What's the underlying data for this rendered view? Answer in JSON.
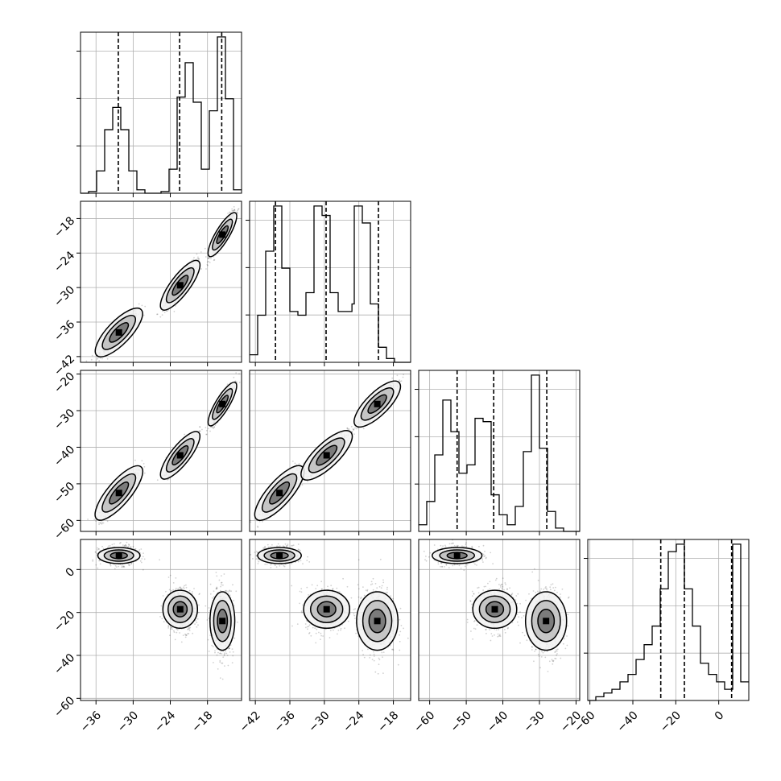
{
  "chart_data": {
    "type": "corner",
    "title": "",
    "parameters": [
      {
        "ticks": [
          -36,
          -30,
          -24,
          -18
        ],
        "tick_labels": [
          "−36",
          "−30",
          "−24",
          "−18"
        ],
        "range": [
          -38.5,
          -12.5
        ],
        "quantiles": [
          -32.4,
          -22.5,
          -15.7
        ]
      },
      {
        "ticks": [
          -42,
          -36,
          -30,
          -24,
          -18
        ],
        "tick_labels": [
          "−42",
          "−36",
          "−30",
          "−24",
          "−18"
        ],
        "range": [
          -43,
          -15
        ],
        "quantiles": [
          -38.5,
          -29.7,
          -20.6
        ]
      },
      {
        "ticks": [
          -60,
          -50,
          -40,
          -30,
          -20
        ],
        "tick_labels": [
          "−60",
          "−50",
          "−40",
          "−30",
          "−20"
        ],
        "range": [
          -63,
          -19
        ],
        "quantiles": [
          -52.5,
          -42.5,
          -28
        ]
      },
      {
        "ticks": [
          -60,
          -40,
          -20,
          0
        ],
        "tick_labels": [
          "−60",
          "−40",
          "−20",
          "0"
        ],
        "range": [
          -61,
          14
        ],
        "quantiles": [
          -27,
          -16,
          6
        ]
      }
    ],
    "y_tick_labels": {
      "p2": [
        "−42",
        "−36",
        "−30",
        "−24",
        "−18"
      ],
      "p3": [
        "−60",
        "−50",
        "−40",
        "−30",
        "−20"
      ],
      "p4": [
        "−60",
        "−40",
        "−20",
        "0"
      ]
    },
    "clusters": [
      {
        "center": [
          -32.3,
          -37.8,
          -52.5,
          6.5
        ],
        "spread": [
          1.7,
          1.9,
          3.4,
          2.2
        ]
      },
      {
        "center": [
          -22.4,
          -29.6,
          -42.2,
          -18.5
        ],
        "spread": [
          1.4,
          2.0,
          3.0,
          5.2
        ]
      },
      {
        "center": [
          -15.6,
          -20.8,
          -28.2,
          -24.0
        ],
        "spread": [
          1.0,
          1.8,
          2.8,
          8.0
        ]
      }
    ],
    "diag_hist": [
      {
        "bins": [
          -38.5,
          -37.2,
          -35.9,
          -34.6,
          -33.3,
          -32,
          -30.7,
          -29.4,
          -28.1,
          -26.8,
          -25.5,
          -24.2,
          -22.9,
          -21.6,
          -20.3,
          -19,
          -17.7,
          -16.4,
          -15.1,
          -13.8,
          -12.5
        ],
        "counts": [
          0,
          1,
          13,
          37,
          50,
          37,
          13,
          2,
          0,
          0,
          1,
          14,
          56,
          76,
          53,
          14,
          48,
          91,
          55,
          2
        ]
      },
      {
        "bins": [
          -43,
          -41.6,
          -40.2,
          -38.8,
          -37.4,
          -36,
          -34.6,
          -33.2,
          -31.8,
          -30.4,
          -29,
          -27.6,
          -25.2,
          -24.8,
          -23.4,
          -22,
          -20.6,
          -19.2,
          -17.8,
          -16.4,
          -15
        ],
        "counts": [
          4,
          25,
          59,
          83,
          50,
          27,
          25,
          37,
          83,
          78,
          37,
          27,
          31,
          83,
          74,
          31,
          8,
          2,
          0,
          0
        ]
      },
      {
        "bins": [
          -63,
          -60.8,
          -58.6,
          -56.4,
          -54.2,
          -52,
          -49.8,
          -47.6,
          -45.4,
          -43.2,
          -41,
          -38.8,
          -36.6,
          -34.4,
          -32.2,
          -30,
          -27.8,
          -25.6,
          -23.4,
          -21.2,
          -19
        ],
        "counts": [
          4,
          18,
          46,
          79,
          60,
          35,
          40,
          68,
          66,
          22,
          10,
          4,
          15,
          48,
          94,
          50,
          12,
          2,
          0,
          0
        ]
      },
      {
        "bins": [
          -61,
          -57.25,
          -53.5,
          -49.75,
          -46,
          -42.25,
          -38.5,
          -34.75,
          -31,
          -27.25,
          -23.5,
          -19.75,
          -16,
          -12.25,
          -8.5,
          -4.75,
          -1,
          2.75,
          6.5,
          10.25,
          14
        ],
        "counts": [
          0,
          1,
          2,
          3,
          5,
          7,
          11,
          15,
          20,
          30,
          40,
          42,
          30,
          20,
          10,
          7,
          5,
          3,
          42,
          5
        ]
      }
    ]
  }
}
